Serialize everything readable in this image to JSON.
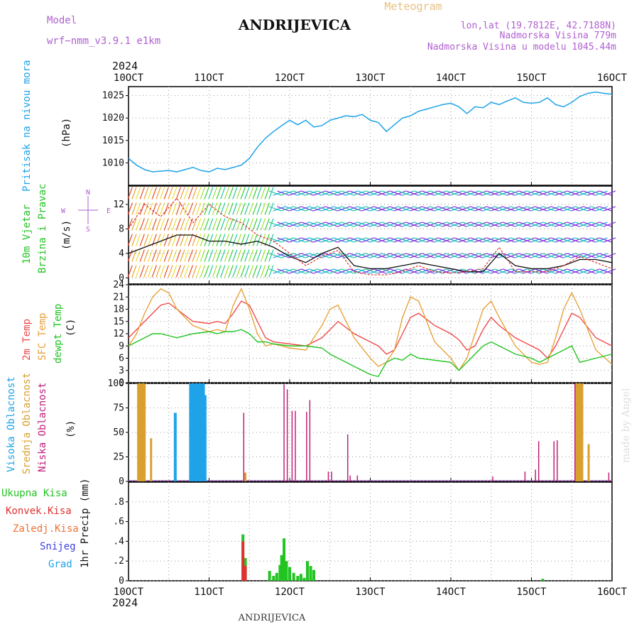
{
  "header": {
    "model_label": "Model",
    "model_name": "wrf−nmm_v3.9.1  e1km",
    "title": "ANDRIJEVICA",
    "meteogram": "Meteogram",
    "lonlat": "lon,lat (19.7812E, 42.7188N)",
    "elevation": "Nadmorska Visina 779m",
    "model_elevation": "Nadmorska Visina u modelu 1045.44m",
    "year": "2024",
    "footer_title": "ANDRIJEVICA",
    "watermark": "made by Angel"
  },
  "colors": {
    "pressure": "#1fa3e8",
    "temp2m": "#f04a4a",
    "sfc": "#e8a23a",
    "dewpt": "#22c422",
    "high_cloud": "#1fa3e8",
    "mid_cloud": "#d9a030",
    "low_cloud": "#c0207a",
    "total_precip": "#22c422",
    "conv_precip": "#e03030",
    "purple": "#b060d0"
  },
  "chart_data": [
    {
      "type": "line",
      "panel": "pressure",
      "title": "",
      "ylabel_left": "Pritisak na nivou mora",
      "ylabel_unit": "(hPa)",
      "xlabels_top": [
        "10OCT",
        "11OCT",
        "12OCT",
        "13OCT",
        "14OCT",
        "15OCT",
        "16OCT"
      ],
      "ylim": [
        1005,
        1027
      ],
      "yticks": [
        1010,
        1015,
        1020,
        1025
      ],
      "grid": true,
      "series": [
        {
          "name": "",
          "x": [
            0,
            0.1,
            0.2,
            0.3,
            0.5,
            0.6,
            0.7,
            0.8,
            0.9,
            1.0,
            1.1,
            1.2,
            1.3,
            1.4,
            1.5,
            1.6,
            1.7,
            1.8,
            1.9,
            2.0,
            2.1,
            2.2,
            2.3,
            2.4,
            2.5,
            2.6,
            2.7,
            2.8,
            2.9,
            3.0,
            3.1,
            3.2,
            3.3,
            3.4,
            3.5,
            3.6,
            3.7,
            3.8,
            3.9,
            4.0,
            4.1,
            4.2,
            4.3,
            4.4,
            4.5,
            4.6,
            4.7,
            4.8,
            4.9,
            5.0,
            5.1,
            5.2,
            5.3,
            5.4,
            5.5,
            5.6,
            5.7,
            5.8,
            5.9,
            6.0
          ],
          "values": [
            1011,
            1009.5,
            1008.5,
            1008,
            1008.3,
            1008,
            1008.5,
            1009,
            1008.3,
            1008,
            1008.8,
            1008.5,
            1009,
            1009.5,
            1011,
            1013.5,
            1015.5,
            1017,
            1018.3,
            1019.5,
            1018.5,
            1019.5,
            1018,
            1018.3,
            1019.5,
            1020,
            1020.5,
            1020.3,
            1020.8,
            1019.5,
            1019,
            1017,
            1018.5,
            1020,
            1020.5,
            1021.5,
            1022,
            1022.5,
            1023,
            1023.3,
            1022.5,
            1021,
            1022.5,
            1022.3,
            1023.5,
            1023,
            1023.8,
            1024.5,
            1023.5,
            1023.3,
            1023.5,
            1024.5,
            1023,
            1022.5,
            1023.5,
            1024.8,
            1025.5,
            1025.8,
            1025.5,
            1025.3
          ]
        }
      ]
    },
    {
      "type": "line",
      "panel": "wind",
      "ylabel_left": [
        "10m Vjetar",
        "Brzina i Pravac"
      ],
      "ylabel_unit": "(m/s)",
      "compass_labels": {
        "n": "N",
        "s": "S",
        "e": "E",
        "w": "W"
      },
      "ylim": [
        -1,
        15
      ],
      "yticks": [
        0,
        4,
        8,
        12
      ],
      "series": [
        {
          "name": "",
          "x": [
            0,
            0.2,
            0.4,
            0.6,
            0.8,
            1.0,
            1.2,
            1.4,
            1.6,
            1.8,
            2.0,
            2.2,
            2.4,
            2.6,
            2.8,
            3.0,
            3.2,
            3.4,
            3.6,
            3.8,
            4.0,
            4.2,
            4.4,
            4.6,
            4.8,
            5.0,
            5.2,
            5.4,
            5.6,
            5.8,
            6.0
          ],
          "values": [
            4,
            5,
            6,
            7,
            7,
            6,
            6,
            5.5,
            6,
            5,
            3.5,
            2.5,
            4,
            5,
            2,
            1.5,
            1.5,
            2,
            2.5,
            2,
            1.5,
            1,
            1,
            4,
            2,
            1.5,
            1.5,
            2,
            3,
            3,
            2.5
          ]
        },
        {
          "name": "",
          "x": [
            0,
            0.2,
            0.4,
            0.6,
            0.8,
            1.0,
            1.2,
            1.4,
            1.6,
            1.8,
            2.0,
            2.2,
            2.4,
            2.6,
            2.8,
            3.0,
            3.2,
            3.4,
            3.6,
            3.8,
            4.0,
            4.2,
            4.4,
            4.6,
            4.8,
            5.0,
            5.2,
            5.4,
            5.6,
            5.8,
            6.0
          ],
          "values": [
            8,
            12,
            10,
            13,
            9,
            12,
            10,
            9,
            7,
            6,
            4,
            2,
            3.5,
            4.5,
            1,
            0.5,
            0.5,
            1,
            2,
            1,
            0.8,
            1,
            1.5,
            5,
            1,
            1,
            1,
            2,
            3.5,
            2.5,
            1.5
          ]
        }
      ]
    },
    {
      "type": "line",
      "panel": "temperature",
      "ylabel_left": [
        "2m Temp",
        "SFC Temp",
        "dewpt Temp"
      ],
      "ylabel_unit": "(C)",
      "ylim": [
        0,
        24
      ],
      "yticks": [
        0,
        3,
        6,
        9,
        12,
        15,
        18,
        21,
        24
      ],
      "series": [
        {
          "name": "",
          "x": [
            0,
            0.1,
            0.2,
            0.3,
            0.4,
            0.5,
            0.6,
            0.8,
            1.0,
            1.1,
            1.2,
            1.3,
            1.4,
            1.5,
            1.6,
            1.7,
            1.8,
            2.0,
            2.2,
            2.4,
            2.5,
            2.6,
            2.8,
            3.0,
            3.1,
            3.2,
            3.3,
            3.4,
            3.5,
            3.6,
            3.8,
            4.0,
            4.1,
            4.2,
            4.3,
            4.4,
            4.5,
            4.6,
            4.8,
            5.0,
            5.1,
            5.2,
            5.3,
            5.4,
            5.5,
            5.6,
            5.8,
            6.0
          ],
          "values": [
            11,
            13,
            15,
            17,
            19,
            19.5,
            18,
            15,
            14.5,
            15,
            14.5,
            17,
            20,
            19,
            15,
            11,
            10,
            9.5,
            9,
            11,
            13,
            15,
            12,
            10,
            9,
            7,
            8,
            12,
            16,
            17,
            14,
            12,
            10.5,
            8,
            9,
            13,
            16,
            14,
            11,
            9,
            8,
            6,
            9,
            13,
            17,
            16,
            11,
            9
          ]
        },
        {
          "name": "",
          "x": [
            0,
            0.1,
            0.2,
            0.3,
            0.4,
            0.5,
            0.6,
            0.8,
            1.0,
            1.1,
            1.2,
            1.3,
            1.4,
            1.5,
            1.6,
            1.7,
            1.8,
            2.0,
            2.2,
            2.4,
            2.5,
            2.6,
            2.8,
            3.0,
            3.1,
            3.2,
            3.3,
            3.4,
            3.5,
            3.6,
            3.8,
            4.0,
            4.1,
            4.2,
            4.3,
            4.4,
            4.5,
            4.6,
            4.8,
            5.0,
            5.1,
            5.2,
            5.3,
            5.4,
            5.5,
            5.6,
            5.8,
            6.0
          ],
          "values": [
            9,
            12,
            17,
            21,
            23,
            22,
            18,
            14,
            12.5,
            13,
            12.5,
            19,
            23,
            18,
            12,
            9,
            9.5,
            8.5,
            8,
            14,
            18,
            19,
            11,
            6,
            4,
            5,
            8,
            16,
            21,
            20,
            10,
            6,
            3,
            6,
            12,
            18,
            20,
            16,
            9,
            5,
            4.5,
            5,
            11,
            18,
            22,
            18,
            8,
            4.5
          ]
        },
        {
          "name": "",
          "x": [
            0,
            0.1,
            0.2,
            0.3,
            0.4,
            0.5,
            0.6,
            0.8,
            1.0,
            1.1,
            1.2,
            1.3,
            1.4,
            1.5,
            1.6,
            1.7,
            1.8,
            2.0,
            2.2,
            2.4,
            2.5,
            2.6,
            2.8,
            3.0,
            3.1,
            3.2,
            3.3,
            3.4,
            3.5,
            3.6,
            3.8,
            4.0,
            4.1,
            4.2,
            4.3,
            4.4,
            4.5,
            4.6,
            4.8,
            5.0,
            5.1,
            5.2,
            5.3,
            5.4,
            5.5,
            5.6,
            5.8,
            6.0
          ],
          "values": [
            9,
            10,
            11,
            12,
            12,
            11.5,
            11,
            12,
            12.5,
            12,
            12.5,
            12.5,
            13,
            12,
            10,
            10,
            9.5,
            9,
            9,
            8.5,
            7,
            6,
            4,
            2,
            1.5,
            5,
            6,
            5.5,
            7,
            6,
            5.5,
            5,
            3,
            5,
            7,
            9,
            10,
            9,
            7,
            6,
            5,
            6,
            7,
            8,
            9,
            5,
            6,
            7
          ]
        }
      ]
    },
    {
      "type": "bar",
      "panel": "clouds",
      "ylabel_left": [
        "Visoka Oblacnost",
        "Srednja Oblacnost",
        "Niska Oblacnost"
      ],
      "ylabel_unit": "(%)",
      "ylim": [
        0,
        100
      ],
      "yticks": [
        0,
        25,
        50,
        75,
        100
      ],
      "series": [
        {
          "name": "",
          "x": [
            0.58,
            0.77,
            0.79,
            0.81,
            0.83,
            0.85,
            0.87,
            0.89,
            0.91,
            0.93,
            0.95
          ],
          "values": [
            70,
            100,
            100,
            100,
            100,
            100,
            100,
            100,
            100,
            100,
            88
          ]
        },
        {
          "name": "",
          "x": [
            0.12,
            0.14,
            0.16,
            0.18,
            0.2,
            0.28,
            1.45,
            5.55,
            5.57,
            5.59,
            5.61,
            5.63,
            5.71
          ],
          "values": [
            100,
            100,
            100,
            100,
            100,
            44,
            9,
            100,
            100,
            100,
            100,
            100,
            38
          ]
        },
        {
          "name": "",
          "x": [
            1.43,
            1.93,
            1.97,
            2.03,
            2.07,
            2.21,
            2.25,
            2.48,
            2.52,
            2.72,
            2.75,
            2.84,
            4.52,
            4.92,
            5.05,
            5.09,
            5.28,
            5.32,
            5.54,
            5.96
          ],
          "values": [
            70,
            99,
            94,
            72,
            72,
            71,
            83,
            10,
            10,
            48,
            6,
            6,
            5,
            10,
            12,
            41,
            41,
            42,
            100,
            9
          ]
        }
      ]
    },
    {
      "type": "bar",
      "panel": "precipitation",
      "ylabel_left": [
        "Ukupna Kisa",
        "Konvek.Kisa",
        "Zaledj.Kisa",
        "Snijeg",
        "Grad"
      ],
      "ylabel_unit": "1hr Precip (mm)",
      "xlabels_bottom": [
        "10OCT",
        "11OCT",
        "12OCT",
        "13OCT",
        "14OCT",
        "15OCT",
        "16OCT"
      ],
      "ylim": [
        0,
        1.0
      ],
      "yticks": [
        0,
        0.2,
        0.4,
        0.6,
        0.8
      ],
      "series": [
        {
          "name": "",
          "x": [
            1.42,
            1.45,
            1.75,
            1.8,
            1.84,
            1.88,
            1.9,
            1.93,
            1.96,
            2.0,
            2.05,
            2.1,
            2.14,
            2.18,
            2.22,
            2.26,
            2.3,
            5.14
          ],
          "values": [
            0.47,
            0.23,
            0.1,
            0.05,
            0.08,
            0.16,
            0.26,
            0.43,
            0.2,
            0.14,
            0.08,
            0.05,
            0.07,
            0.03,
            0.2,
            0.15,
            0.11,
            0.02
          ]
        },
        {
          "name": "",
          "x": [
            1.42,
            1.45
          ],
          "values": [
            0.4,
            0.15
          ]
        }
      ]
    }
  ]
}
